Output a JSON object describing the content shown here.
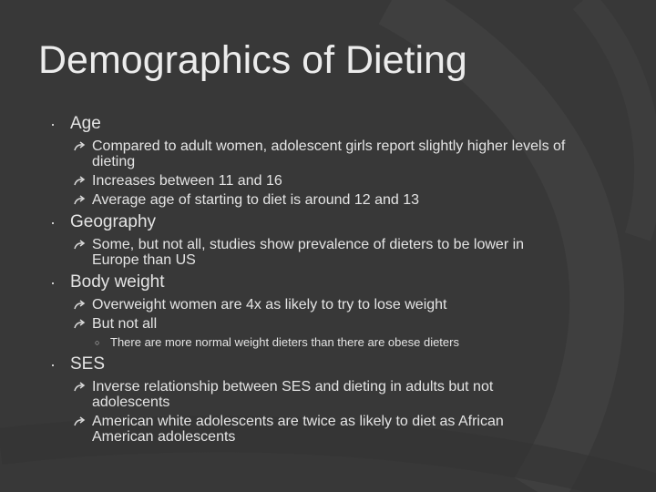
{
  "title": "Demographics of Dieting",
  "sections": [
    {
      "heading": "Age",
      "items": [
        {
          "text": "Compared to adult women, adolescent girls report slightly higher levels of dieting"
        },
        {
          "text": "Increases between 11 and 16"
        },
        {
          "text": "Average age of starting to diet is around 12 and 13"
        }
      ]
    },
    {
      "heading": "Geography",
      "items": [
        {
          "text": "Some, but not all, studies show prevalence of dieters to be lower in Europe than US"
        }
      ]
    },
    {
      "heading": "Body weight",
      "items": [
        {
          "text": "Overweight women are 4x as likely to try to lose weight"
        },
        {
          "text": "But not all",
          "subitems": [
            "There are more normal weight dieters than there are obese dieters"
          ]
        }
      ]
    },
    {
      "heading": "SES",
      "items": [
        {
          "text": "Inverse relationship between SES and dieting in adults but not adolescents"
        },
        {
          "text": "American white adolescents are twice as likely to diet as African American adolescents"
        }
      ]
    }
  ]
}
